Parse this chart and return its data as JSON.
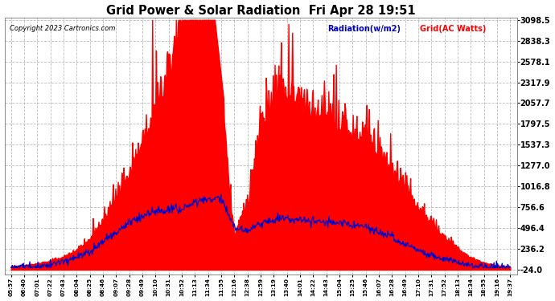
{
  "title": "Grid Power & Solar Radiation  Fri Apr 28 19:51",
  "copyright": "Copyright 2023 Cartronics.com",
  "legend_radiation": "Radiation(w/m2)",
  "legend_grid": "Grid(AC Watts)",
  "background_color": "#ffffff",
  "plot_bg_color": "#ffffff",
  "grid_color": "#aaaaaa",
  "radiation_color": "#0000cc",
  "grid_ac_color": "#ff0000",
  "yticks": [
    3098.5,
    2838.3,
    2578.1,
    2317.9,
    2057.7,
    1797.5,
    1537.3,
    1277.0,
    1016.8,
    756.6,
    496.4,
    236.2,
    -24.0
  ],
  "ymin": -24.0,
  "ymax": 3098.5,
  "xtick_labels": [
    "05:57",
    "06:40",
    "07:01",
    "07:22",
    "07:43",
    "08:04",
    "08:25",
    "08:46",
    "09:07",
    "09:28",
    "09:49",
    "10:10",
    "10:31",
    "10:52",
    "11:13",
    "11:34",
    "11:55",
    "12:16",
    "12:38",
    "12:59",
    "13:19",
    "13:40",
    "14:01",
    "14:22",
    "14:43",
    "15:04",
    "15:25",
    "15:46",
    "16:07",
    "16:28",
    "16:49",
    "17:10",
    "17:31",
    "17:52",
    "18:13",
    "18:34",
    "18:55",
    "19:16",
    "19:37"
  ]
}
